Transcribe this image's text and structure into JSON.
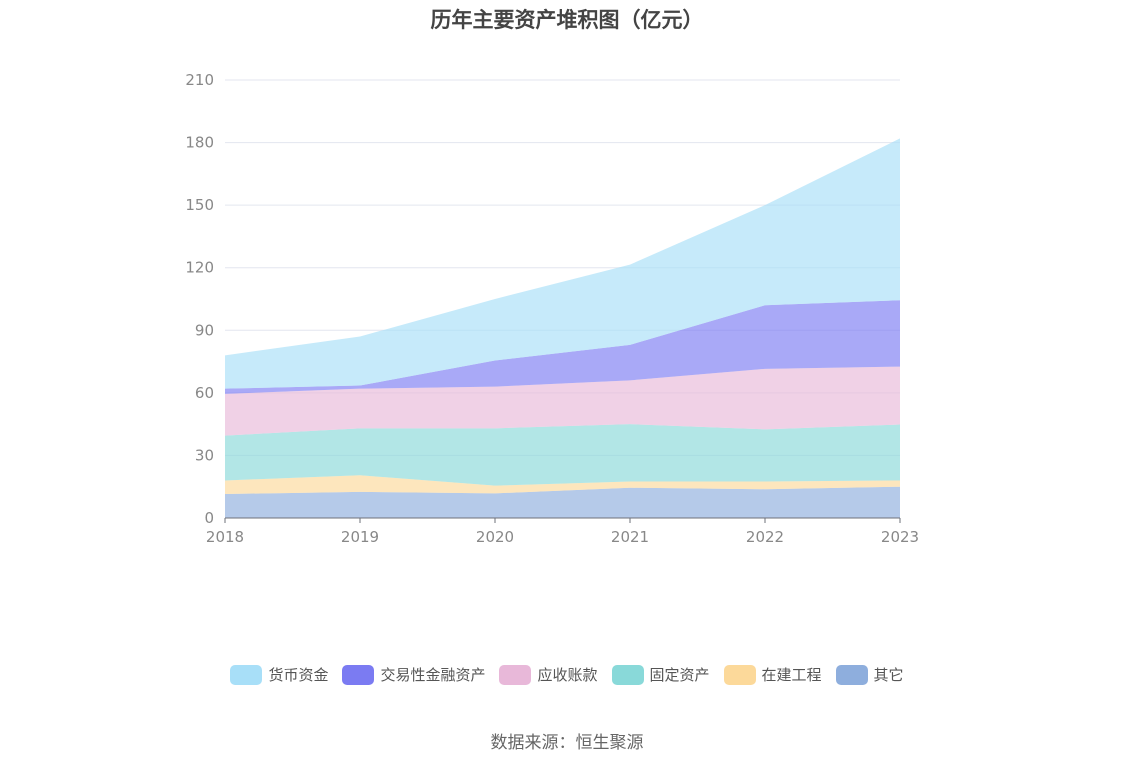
{
  "title": "历年主要资产堆积图（亿元）",
  "source": "数据来源：恒生聚源",
  "chart_data": {
    "type": "area",
    "stacked": true,
    "title": "历年主要资产堆积图（亿元）",
    "xlabel": "",
    "ylabel": "",
    "x": [
      "2018",
      "2019",
      "2020",
      "2021",
      "2022",
      "2023"
    ],
    "ylim": [
      0,
      210
    ],
    "yticks": [
      "0",
      "30",
      "60",
      "90",
      "120",
      "150",
      "180",
      "210"
    ],
    "grid": true,
    "legend_position": "bottom",
    "series": [
      {
        "name": "其它",
        "color": "#8eaedd",
        "values": [
          11.5,
          12.5,
          11.8,
          14.5,
          13.8,
          15.0
        ]
      },
      {
        "name": "在建工程",
        "color": "#fcd99a",
        "values": [
          6.5,
          8.0,
          3.7,
          3.0,
          3.7,
          3.0
        ]
      },
      {
        "name": "固定资产",
        "color": "#89d9d9",
        "values": [
          21.5,
          22.5,
          27.5,
          27.5,
          25.0,
          26.8
        ]
      },
      {
        "name": "应收账款",
        "color": "#e8b8d9",
        "values": [
          20.0,
          19.0,
          20.0,
          21.0,
          29.0,
          27.8
        ]
      },
      {
        "name": "交易性金融资产",
        "color": "#7b7bf2",
        "values": [
          2.5,
          1.5,
          12.5,
          17.0,
          30.5,
          31.8
        ]
      },
      {
        "name": "货币资金",
        "color": "#a8dff8",
        "values": [
          16.0,
          23.5,
          29.5,
          38.5,
          48.0,
          77.6
        ]
      }
    ]
  }
}
